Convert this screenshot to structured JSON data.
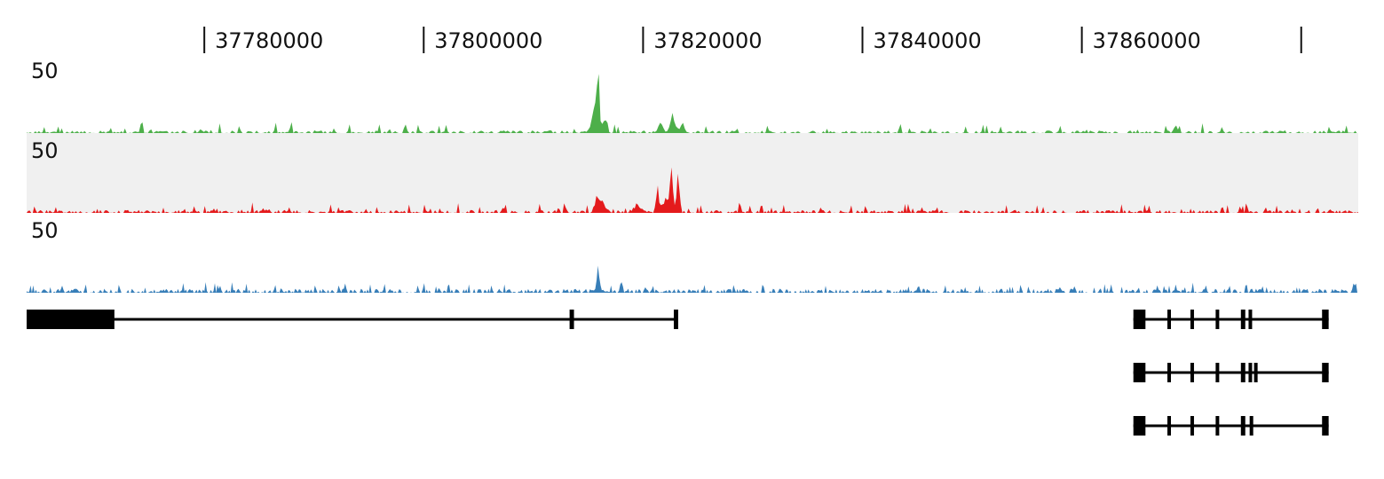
{
  "chart_data": {
    "type": "area",
    "x_ticks": [
      37780000,
      37800000,
      37820000,
      37840000,
      37860000,
      37880000
    ],
    "x_tick_labels": [
      "37780000",
      "37800000",
      "37820000",
      "37840000",
      "37860000",
      ""
    ],
    "xlim": [
      37763800,
      37885200
    ],
    "tracks": [
      {
        "id": "green",
        "color": "#4daf4a",
        "background": "#ffffff",
        "ylim": [
          0,
          50
        ],
        "scale_label": "50",
        "peaks": [
          {
            "x": 37815900,
            "y": 45,
            "w": 300
          },
          {
            "x": 37815600,
            "y": 20,
            "w": 700
          },
          {
            "x": 37816500,
            "y": 12,
            "w": 500
          },
          {
            "x": 37822700,
            "y": 14,
            "w": 600
          },
          {
            "x": 37821600,
            "y": 9,
            "w": 500
          },
          {
            "x": 37823600,
            "y": 7,
            "w": 500
          },
          {
            "x": 37868600,
            "y": 6,
            "w": 400
          }
        ],
        "noise": {
          "base": 1.6,
          "amp": 5.5,
          "step": 160
        }
      },
      {
        "id": "red",
        "color": "#e41a1c",
        "background": "#f0f0f0",
        "ylim": [
          0,
          50
        ],
        "scale_label": "50",
        "peaks": [
          {
            "x": 37815800,
            "y": 12,
            "w": 500
          },
          {
            "x": 37816300,
            "y": 9,
            "w": 700
          },
          {
            "x": 37821300,
            "y": 19,
            "w": 300
          },
          {
            "x": 37822600,
            "y": 30,
            "w": 350
          },
          {
            "x": 37823200,
            "y": 30,
            "w": 350
          },
          {
            "x": 37822100,
            "y": 10,
            "w": 1200
          },
          {
            "x": 37819500,
            "y": 6,
            "w": 900
          }
        ],
        "noise": {
          "base": 1.8,
          "amp": 5.0,
          "step": 140
        }
      },
      {
        "id": "blue",
        "color": "#377eb8",
        "background": "#ffffff",
        "ylim": [
          0,
          50
        ],
        "scale_label": "50",
        "peaks": [
          {
            "x": 37815900,
            "y": 16,
            "w": 400
          },
          {
            "x": 37818000,
            "y": 9,
            "w": 300
          },
          {
            "x": 37884800,
            "y": 9,
            "w": 300
          }
        ],
        "noise": {
          "base": 2.5,
          "amp": 4.5,
          "step": 120
        }
      }
    ],
    "genes": [
      {
        "strand_line": [
          37763800,
          37823100
        ],
        "exons": [
          [
            37763800,
            37771800
          ],
          [
            37813300,
            37813700
          ],
          [
            37822800,
            37823200
          ]
        ]
      },
      {
        "strand_line": [
          37864700,
          37882500
        ],
        "exons": [
          [
            37864700,
            37865800
          ],
          [
            37867800,
            37868100
          ],
          [
            37869900,
            37870200
          ],
          [
            37872200,
            37872500
          ],
          [
            37874500,
            37874900
          ],
          [
            37875200,
            37875500
          ],
          [
            37881900,
            37882500
          ]
        ]
      },
      {
        "strand_line": [
          37864700,
          37882500
        ],
        "exons": [
          [
            37864700,
            37865800
          ],
          [
            37867800,
            37868100
          ],
          [
            37869900,
            37870200
          ],
          [
            37872200,
            37872500
          ],
          [
            37874500,
            37874900
          ],
          [
            37875200,
            37875500
          ],
          [
            37875700,
            37876000
          ],
          [
            37881900,
            37882500
          ]
        ]
      },
      {
        "strand_line": [
          37864700,
          37882500
        ],
        "exons": [
          [
            37864700,
            37865800
          ],
          [
            37867800,
            37868100
          ],
          [
            37869900,
            37870200
          ],
          [
            37872200,
            37872500
          ],
          [
            37874500,
            37874900
          ],
          [
            37875300,
            37875600
          ],
          [
            37881900,
            37882500
          ]
        ]
      }
    ]
  }
}
